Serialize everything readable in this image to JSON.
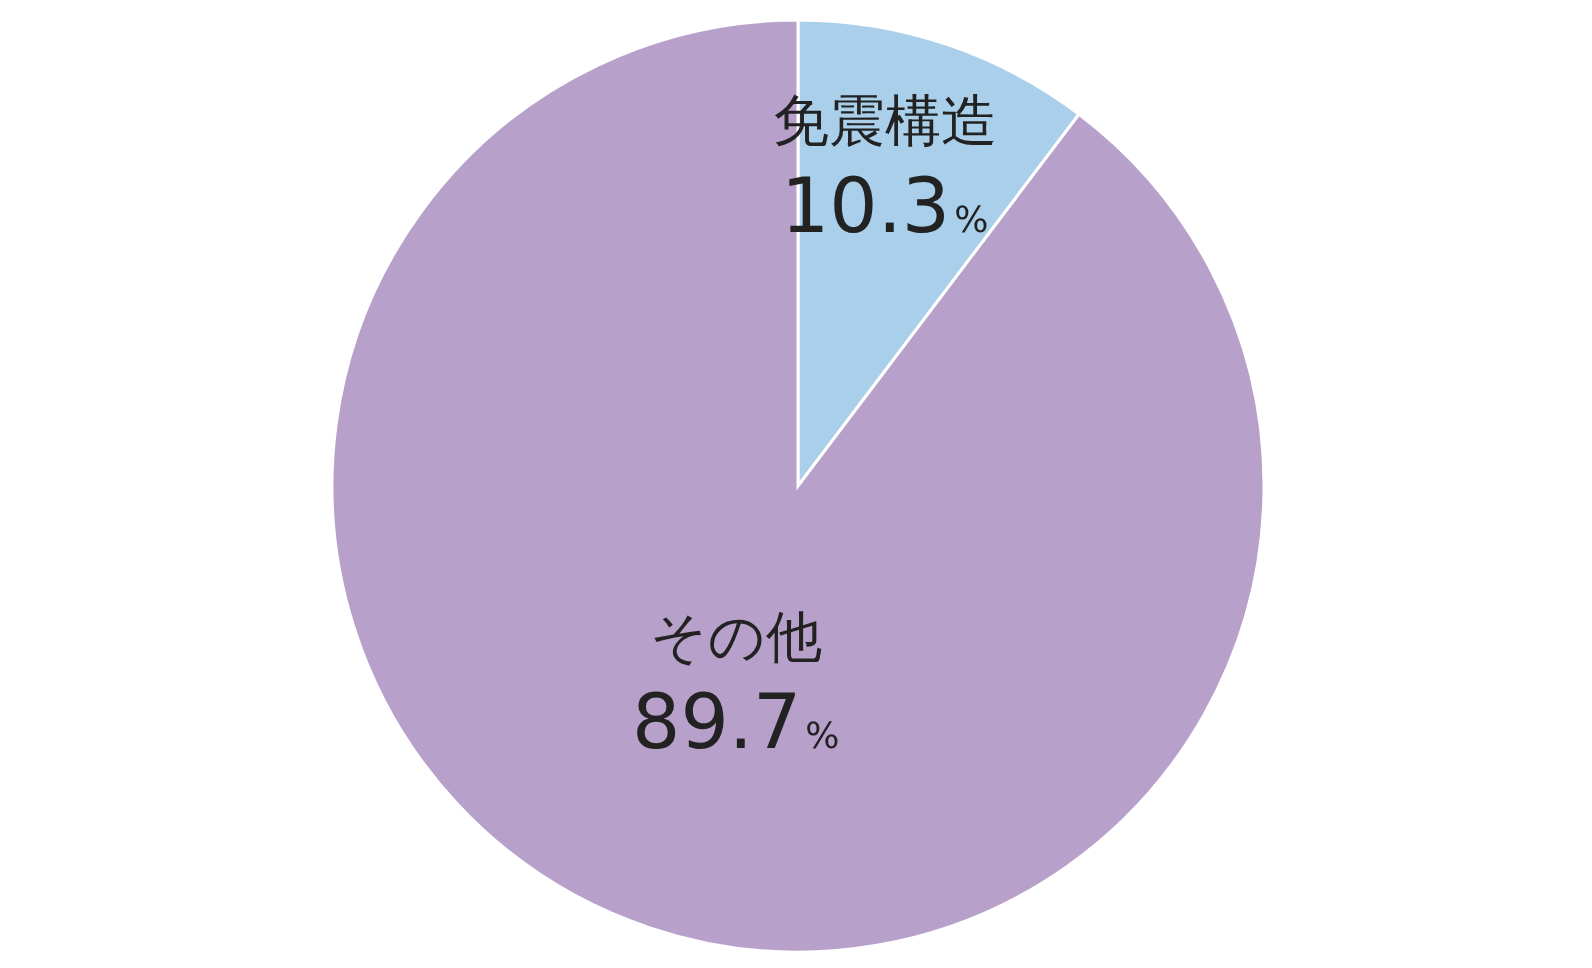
{
  "chart_data": {
    "type": "pie",
    "categories": [
      "免震構造",
      "その他"
    ],
    "values": [
      10.3,
      89.7
    ],
    "colors": [
      "#a9cfea",
      "#b7a0ca"
    ],
    "value_labels": [
      "10.3%",
      "89.7%"
    ]
  }
}
